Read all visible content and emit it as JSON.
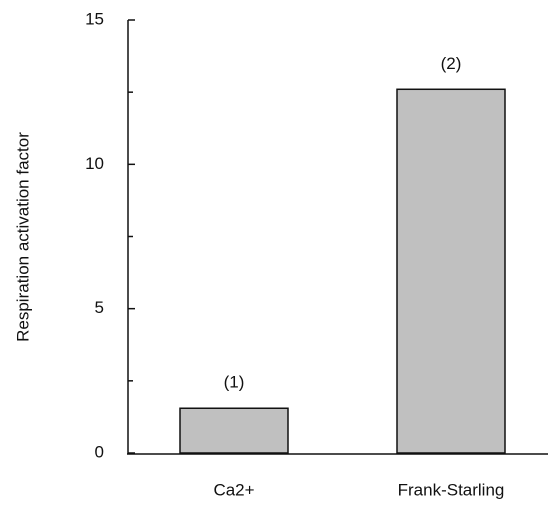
{
  "chart_data": {
    "type": "bar",
    "y_label": "Respiration activation factor",
    "categories": [
      "Ca2+",
      "Frank-Starling"
    ],
    "values": [
      1.55,
      12.6
    ],
    "annotations": [
      "(1)",
      "(2)"
    ],
    "color": "#c0c0c0",
    "ylim": [
      0,
      15
    ],
    "yticks": [
      0,
      5,
      10,
      15
    ],
    "minor_yticks": [
      2.5,
      7.5,
      12.5
    ],
    "grid": false
  }
}
